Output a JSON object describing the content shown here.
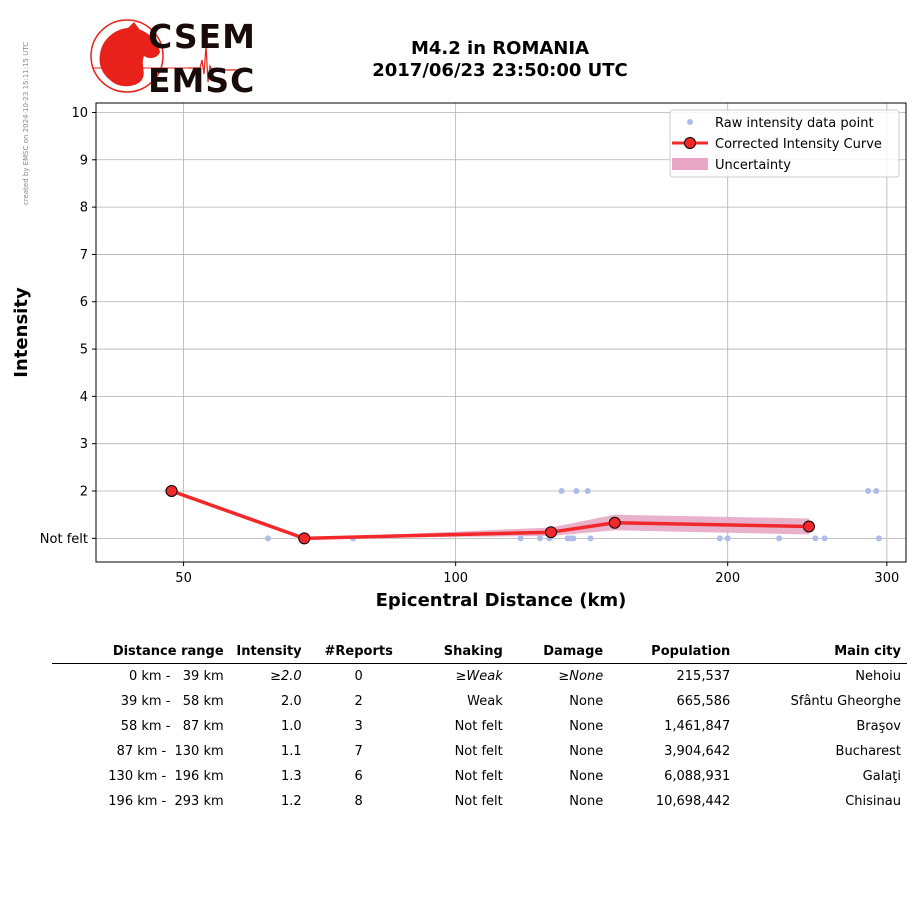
{
  "side_note": "created by EMSC on 2024-10-23 15:11:15 UTC",
  "logo": {
    "line1": "CSEM",
    "line2": "EMSC",
    "accent": "#e8221b"
  },
  "title": {
    "line1": "M4.2 in ROMANIA",
    "line2": "2017/06/23 23:50:00 UTC"
  },
  "chart_data": {
    "type": "scatter",
    "xlabel": "Epicentral Distance (km)",
    "ylabel": "Intensity",
    "x_scale": "log",
    "xlim": [
      40,
      315
    ],
    "ylim": [
      0.5,
      10.2
    ],
    "x_ticks": [
      50,
      100,
      200,
      300
    ],
    "y_ticks": [
      1,
      2,
      3,
      4,
      5,
      6,
      7,
      8,
      9,
      10
    ],
    "y_tick_labels": [
      "Not felt",
      "2",
      "3",
      "4",
      "5",
      "6",
      "7",
      "8",
      "9",
      "10"
    ],
    "grid": true,
    "legend": {
      "position": "top-right",
      "entries": [
        "Raw intensity data point",
        "Corrected Intensity Curve",
        "Uncertainty"
      ]
    },
    "colors": {
      "raw": "#aebde8",
      "curve": "#f2282a",
      "uncertainty": "#e8a8c5",
      "marker_edge": "#000000"
    },
    "series": [
      {
        "name": "Raw intensity data point",
        "points": [
          [
            48,
            2
          ],
          [
            62,
            1
          ],
          [
            77,
            1
          ],
          [
            118,
            1
          ],
          [
            124,
            1
          ],
          [
            127,
            1
          ],
          [
            131,
            2
          ],
          [
            133,
            1
          ],
          [
            134,
            1
          ],
          [
            135,
            1
          ],
          [
            136,
            2
          ],
          [
            141,
            1
          ],
          [
            140,
            2
          ],
          [
            196,
            1
          ],
          [
            200,
            1
          ],
          [
            228,
            1
          ],
          [
            250,
            1
          ],
          [
            256,
            1
          ],
          [
            286,
            2
          ],
          [
            292,
            2
          ],
          [
            294,
            1
          ]
        ]
      },
      {
        "name": "Corrected Intensity Curve",
        "points": [
          [
            48.5,
            2.0
          ],
          [
            68,
            1.0
          ],
          [
            127.5,
            1.13
          ],
          [
            150,
            1.33
          ],
          [
            246,
            1.25
          ]
        ]
      },
      {
        "name": "Uncertainty",
        "band": [
          [
            68,
            1.0,
            1.0
          ],
          [
            127.5,
            1.05,
            1.23
          ],
          [
            150,
            1.17,
            1.5
          ],
          [
            246,
            1.08,
            1.42
          ]
        ]
      }
    ]
  },
  "table": {
    "headers": [
      "Distance range",
      "Intensity",
      "#Reports",
      "Shaking",
      "Damage",
      "Population",
      "Main city"
    ],
    "rows": [
      {
        "range": "0 km -   39 km",
        "intensity": "≥2.0",
        "reports": "0",
        "shaking": "≥Weak",
        "damage": "≥None",
        "population": "215,537",
        "city": "Nehoiu"
      },
      {
        "range": "39 km -   58 km",
        "intensity": "2.0",
        "reports": "2",
        "shaking": "Weak",
        "damage": "None",
        "population": "665,586",
        "city": "Sfântu Gheorghe"
      },
      {
        "range": "58 km -   87 km",
        "intensity": "1.0",
        "reports": "3",
        "shaking": "Not felt",
        "damage": "None",
        "population": "1,461,847",
        "city": "Braşov"
      },
      {
        "range": "87 km -  130 km",
        "intensity": "1.1",
        "reports": "7",
        "shaking": "Not felt",
        "damage": "None",
        "population": "3,904,642",
        "city": "Bucharest"
      },
      {
        "range": "130 km -  196 km",
        "intensity": "1.3",
        "reports": "6",
        "shaking": "Not felt",
        "damage": "None",
        "population": "6,088,931",
        "city": "Galaţi"
      },
      {
        "range": "196 km -  293 km",
        "intensity": "1.2",
        "reports": "8",
        "shaking": "Not felt",
        "damage": "None",
        "population": "10,698,442",
        "city": "Chisinau"
      }
    ]
  }
}
